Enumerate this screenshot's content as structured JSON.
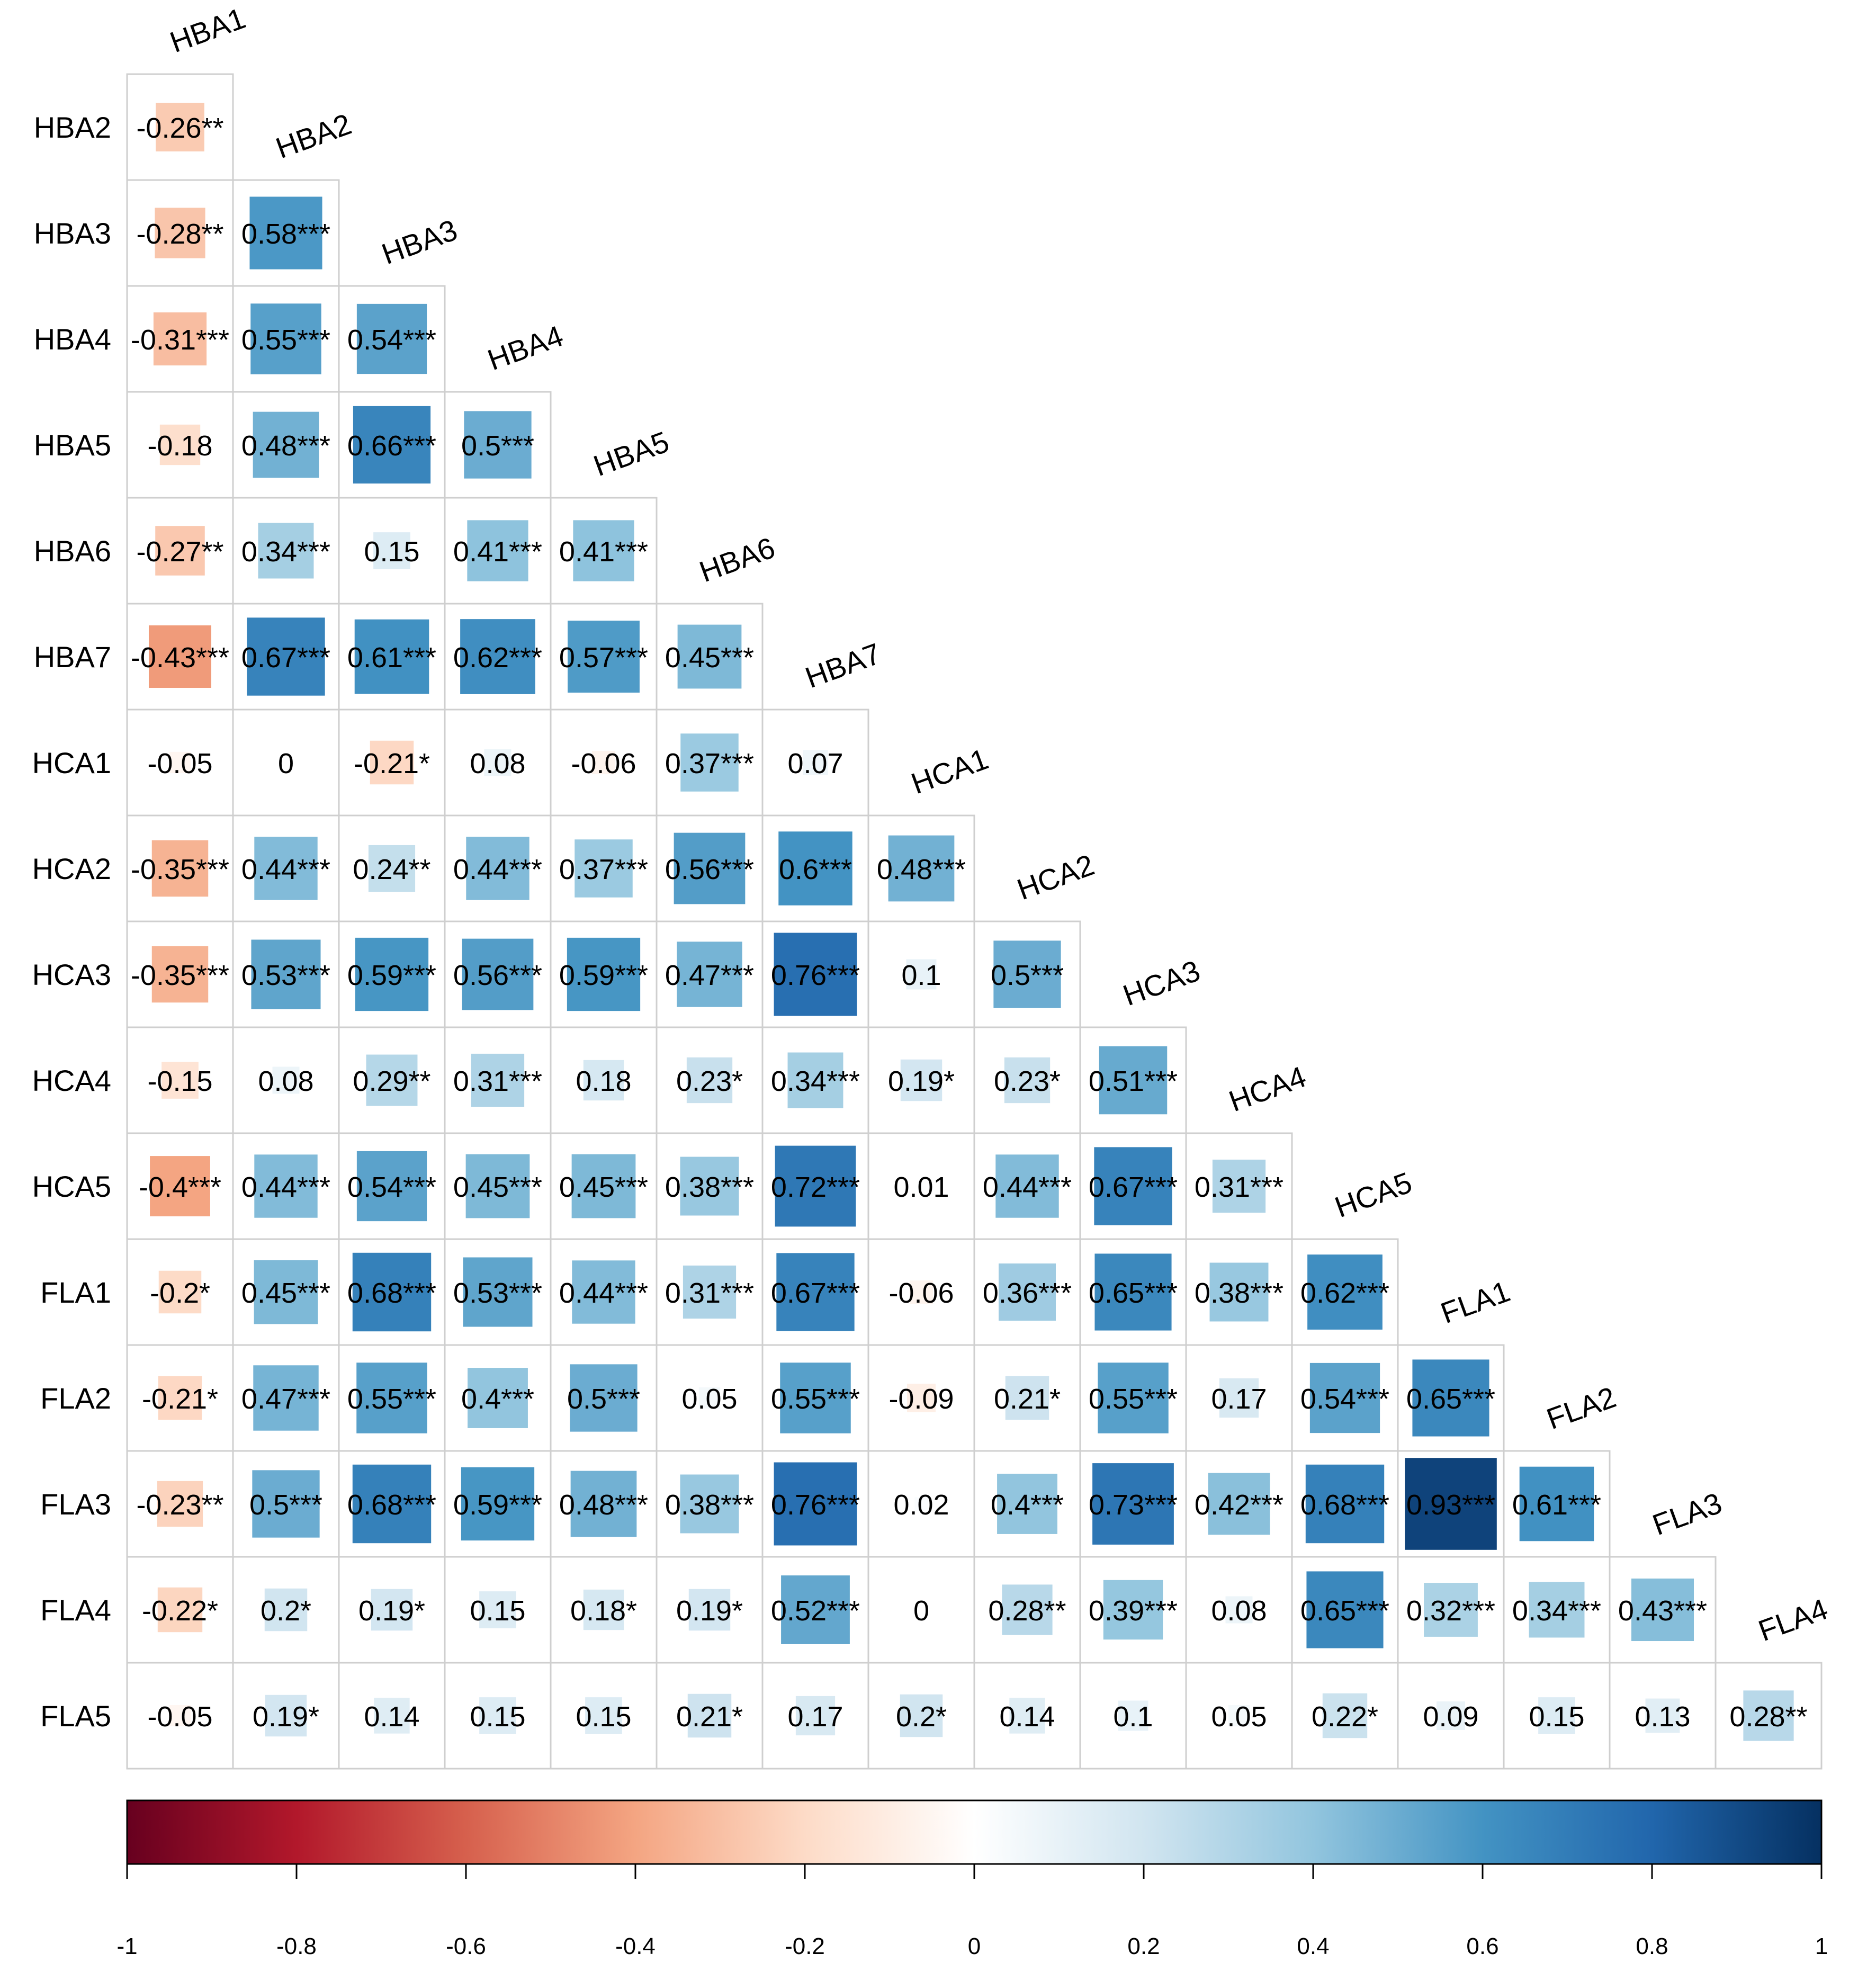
{
  "chart_data": {
    "type": "heatmap",
    "subtype": "correlation-matrix-lower-triangle",
    "variables": [
      "HBA1",
      "HBA2",
      "HBA3",
      "HBA4",
      "HBA5",
      "HBA6",
      "HBA7",
      "HCA1",
      "HCA2",
      "HCA3",
      "HCA4",
      "HCA5",
      "FLA1",
      "FLA2",
      "FLA3",
      "FLA4",
      "FLA5"
    ],
    "row_labels": [
      "HBA2",
      "HBA3",
      "HBA4",
      "HBA5",
      "HBA6",
      "HBA7",
      "HCA1",
      "HCA2",
      "HCA3",
      "HCA4",
      "HCA5",
      "FLA1",
      "FLA2",
      "FLA3",
      "FLA4",
      "FLA5"
    ],
    "column_labels": [
      "HBA1",
      "HBA2",
      "HBA3",
      "HBA4",
      "HBA5",
      "HBA6",
      "HBA7",
      "HCA1",
      "HCA2",
      "HCA3",
      "HCA4",
      "HCA5",
      "FLA1",
      "FLA2",
      "FLA3",
      "FLA4"
    ],
    "values": [
      [
        -0.26
      ],
      [
        -0.28,
        0.58
      ],
      [
        -0.31,
        0.55,
        0.54
      ],
      [
        -0.18,
        0.48,
        0.66,
        0.5
      ],
      [
        -0.27,
        0.34,
        0.15,
        0.41,
        0.41
      ],
      [
        -0.43,
        0.67,
        0.61,
        0.62,
        0.57,
        0.45
      ],
      [
        -0.05,
        0,
        -0.21,
        0.08,
        -0.06,
        0.37,
        0.07
      ],
      [
        -0.35,
        0.44,
        0.24,
        0.44,
        0.37,
        0.56,
        0.6,
        0.48
      ],
      [
        -0.35,
        0.53,
        0.59,
        0.56,
        0.59,
        0.47,
        0.76,
        0.1,
        0.5
      ],
      [
        -0.15,
        0.08,
        0.29,
        0.31,
        0.18,
        0.23,
        0.34,
        0.19,
        0.23,
        0.51
      ],
      [
        -0.4,
        0.44,
        0.54,
        0.45,
        0.45,
        0.38,
        0.72,
        0.01,
        0.44,
        0.67,
        0.31
      ],
      [
        -0.2,
        0.45,
        0.68,
        0.53,
        0.44,
        0.31,
        0.67,
        -0.06,
        0.36,
        0.65,
        0.38,
        0.62
      ],
      [
        -0.21,
        0.47,
        0.55,
        0.4,
        0.5,
        0.05,
        0.55,
        -0.09,
        0.21,
        0.55,
        0.17,
        0.54,
        0.65
      ],
      [
        -0.23,
        0.5,
        0.68,
        0.59,
        0.48,
        0.38,
        0.76,
        0.02,
        0.4,
        0.73,
        0.42,
        0.68,
        0.93,
        0.61
      ],
      [
        -0.22,
        0.2,
        0.19,
        0.15,
        0.18,
        0.19,
        0.52,
        0,
        0.28,
        0.39,
        0.08,
        0.65,
        0.32,
        0.34,
        0.43
      ],
      [
        -0.05,
        0.19,
        0.14,
        0.15,
        0.15,
        0.21,
        0.17,
        0.2,
        0.14,
        0.1,
        0.05,
        0.22,
        0.09,
        0.15,
        0.13,
        0.28
      ]
    ],
    "labels": [
      [
        "-0.26**"
      ],
      [
        "-0.28**",
        "0.58***"
      ],
      [
        "-0.31***",
        "0.55***",
        "0.54***"
      ],
      [
        "-0.18",
        "0.48***",
        "0.66***",
        "0.5***"
      ],
      [
        "-0.27**",
        "0.34***",
        "0.15",
        "0.41***",
        "0.41***"
      ],
      [
        "-0.43***",
        "0.67***",
        "0.61***",
        "0.62***",
        "0.57***",
        "0.45***"
      ],
      [
        "-0.05",
        "0",
        "-0.21*",
        "0.08",
        "-0.06",
        "0.37***",
        "0.07"
      ],
      [
        "-0.35***",
        "0.44***",
        "0.24**",
        "0.44***",
        "0.37***",
        "0.56***",
        "0.6***",
        "0.48***"
      ],
      [
        "-0.35***",
        "0.53***",
        "0.59***",
        "0.56***",
        "0.59***",
        "0.47***",
        "0.76***",
        "0.1",
        "0.5***"
      ],
      [
        "-0.15",
        "0.08",
        "0.29**",
        "0.31***",
        "0.18",
        "0.23*",
        "0.34***",
        "0.19*",
        "0.23*",
        "0.51***"
      ],
      [
        "-0.4***",
        "0.44***",
        "0.54***",
        "0.45***",
        "0.45***",
        "0.38***",
        "0.72***",
        "0.01",
        "0.44***",
        "0.67***",
        "0.31***"
      ],
      [
        "-0.2*",
        "0.45***",
        "0.68***",
        "0.53***",
        "0.44***",
        "0.31***",
        "0.67***",
        "-0.06",
        "0.36***",
        "0.65***",
        "0.38***",
        "0.62***"
      ],
      [
        "-0.21*",
        "0.47***",
        "0.55***",
        "0.4***",
        "0.5***",
        "0.05",
        "0.55***",
        "-0.09",
        "0.21*",
        "0.55***",
        "0.17",
        "0.54***",
        "0.65***"
      ],
      [
        "-0.23**",
        "0.5***",
        "0.68***",
        "0.59***",
        "0.48***",
        "0.38***",
        "0.76***",
        "0.02",
        "0.4***",
        "0.73***",
        "0.42***",
        "0.68***",
        "0.93***",
        "0.61***"
      ],
      [
        "-0.22*",
        "0.2*",
        "0.19*",
        "0.15",
        "0.18*",
        "0.19*",
        "0.52***",
        "0",
        "0.28**",
        "0.39***",
        "0.08",
        "0.65***",
        "0.32***",
        "0.34***",
        "0.43***"
      ],
      [
        "-0.05",
        "0.19*",
        "0.14",
        "0.15",
        "0.15",
        "0.21*",
        "0.17",
        "0.2*",
        "0.14",
        "0.1",
        "0.05",
        "0.22*",
        "0.09",
        "0.15",
        "0.13",
        "0.28**"
      ]
    ],
    "color_scale": {
      "domain": [
        -1,
        1
      ],
      "stops": [
        "#67001f",
        "#b2182b",
        "#d6604d",
        "#f4a582",
        "#fddbc7",
        "#ffffff",
        "#d1e5f0",
        "#92c5de",
        "#4393c3",
        "#2166ac",
        "#053061"
      ]
    },
    "colorbar_ticks": [
      "-1",
      "-0.8",
      "-0.6",
      "-0.4",
      "-0.2",
      "0",
      "0.2",
      "0.4",
      "0.6",
      "0.8",
      "1"
    ],
    "title": "",
    "xlabel": "",
    "ylabel": "",
    "legend": "bottom"
  }
}
